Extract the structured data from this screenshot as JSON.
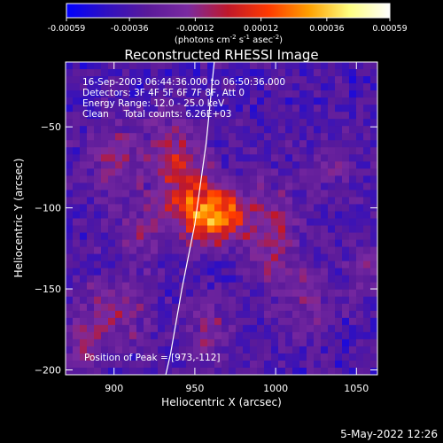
{
  "chart_data": {
    "type": "heatmap",
    "title": "Reconstructed RHESSI Image",
    "xlabel": "Heliocentric X (arcsec)",
    "ylabel": "Heliocentric Y (arcsec)",
    "xlim": [
      870,
      1063
    ],
    "ylim": [
      -203,
      -10
    ],
    "x_ticks": [
      900,
      950,
      1000,
      1050
    ],
    "y_ticks": [
      -50,
      -100,
      -150,
      -200
    ],
    "colorbar": {
      "range": [
        -0.00059,
        0.00059
      ],
      "ticks": [
        "-0.00059",
        "-0.00036",
        "-0.00012",
        "0.00012",
        "0.00036",
        "0.00059"
      ],
      "tick_values": [
        -0.00059,
        -0.00036,
        -0.00012,
        0.00012,
        0.00036,
        0.00059
      ],
      "unit_text": "(photons cm",
      "unit_exp1": "-2",
      "unit_mid1": " s",
      "unit_exp2": "-1",
      "unit_mid2": " asec",
      "unit_exp3": "-2",
      "unit_end": ")",
      "colors": [
        "#0000ff",
        "#3010c0",
        "#5a1a9a",
        "#7a2aa0",
        "#c0182a",
        "#ff3a00",
        "#ffa000",
        "#ffff80",
        "#ffffff"
      ]
    },
    "info_lines": [
      "16-Sep-2003 06:44:36.000 to 06:50:36.000",
      "Detectors: 3F 4F 5F 6F 7F 8F, Att 0",
      "Energy Range: 12.0 - 25.0 keV",
      "Clean     Total counts: 6.26E+03"
    ],
    "peak_label": "Position of Peak = [973,-112]",
    "peak": [
      973,
      -112
    ],
    "limb_points": [
      [
        962,
        -10
      ],
      [
        957,
        -60
      ],
      [
        950,
        -110
      ],
      [
        942,
        -150
      ],
      [
        935,
        -190
      ],
      [
        932,
        -203
      ]
    ],
    "sources": [
      {
        "x": 965,
        "y": -105,
        "amp": 0.00059,
        "sx": 14,
        "sy": 12
      },
      {
        "x": 945,
        "y": -92,
        "amp": 0.00036,
        "sx": 12,
        "sy": 18
      },
      {
        "x": 935,
        "y": -60,
        "amp": 0.00024,
        "sx": 10,
        "sy": 14
      },
      {
        "x": 900,
        "y": -70,
        "amp": 0.00026,
        "sx": 14,
        "sy": 16
      },
      {
        "x": 915,
        "y": -115,
        "amp": 0.0002,
        "sx": 12,
        "sy": 14
      },
      {
        "x": 1000,
        "y": -118,
        "amp": 0.00026,
        "sx": 12,
        "sy": 22
      },
      {
        "x": 1035,
        "y": -75,
        "amp": 0.00018,
        "sx": 10,
        "sy": 12
      },
      {
        "x": 900,
        "y": -165,
        "amp": 0.00024,
        "sx": 14,
        "sy": 16
      },
      {
        "x": 960,
        "y": -175,
        "amp": 0.0002,
        "sx": 10,
        "sy": 14
      },
      {
        "x": 1020,
        "y": -160,
        "amp": 0.00018,
        "sx": 12,
        "sy": 14
      },
      {
        "x": 880,
        "y": -185,
        "amp": 0.00022,
        "sx": 8,
        "sy": 10
      },
      {
        "x": 1055,
        "y": -140,
        "amp": 0.00016,
        "sx": 8,
        "sy": 12
      }
    ],
    "background": -0.00035
  },
  "footer_date": "5-May-2022 12:26"
}
